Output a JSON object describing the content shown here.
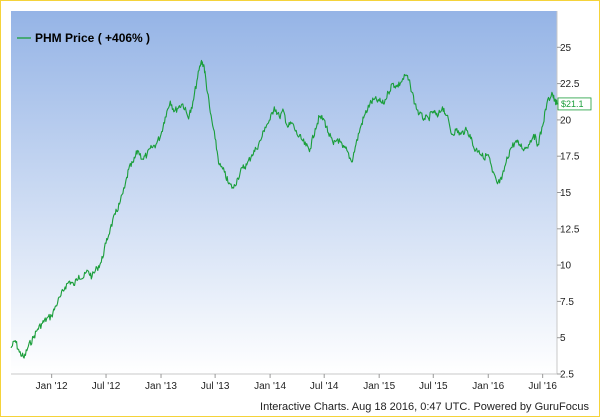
{
  "chart_data": {
    "type": "line",
    "title": "",
    "xlabel": "",
    "ylabel": "",
    "legend": {
      "label": "PHM Price ( +406% )",
      "position": "top-left"
    },
    "x_tick_labels": [
      "Jan '12",
      "Jul '12",
      "Jan '13",
      "Jul '13",
      "Jan '14",
      "Jul '14",
      "Jan '15",
      "Jul '15",
      "Jan '16",
      "Jul '16"
    ],
    "y_tick_labels": [
      "2.5",
      "5",
      "7.5",
      "10",
      "12.5",
      "15",
      "17.5",
      "20",
      "22.5",
      "25"
    ],
    "ylim": [
      2.5,
      27.5
    ],
    "x_range": [
      "2011-08-18",
      "2016-08-18"
    ],
    "grid": false,
    "last_value_label": "$21.1",
    "colors": {
      "line": "#1a9e3a",
      "plot_top": "#95b4e6",
      "plot_bottom": "#ffffff",
      "frame": "#f5d33a"
    },
    "series": [
      {
        "name": "PHM Price",
        "points": [
          [
            "2011-08-18",
            4.3
          ],
          [
            "2011-09-01",
            4.8
          ],
          [
            "2011-09-15",
            4.0
          ],
          [
            "2011-10-01",
            3.6
          ],
          [
            "2011-10-15",
            4.4
          ],
          [
            "2011-11-01",
            5.0
          ],
          [
            "2011-11-15",
            5.6
          ],
          [
            "2011-12-01",
            6.0
          ],
          [
            "2011-12-15",
            6.3
          ],
          [
            "2012-01-01",
            6.5
          ],
          [
            "2012-01-15",
            7.2
          ],
          [
            "2012-02-01",
            7.9
          ],
          [
            "2012-02-15",
            8.5
          ],
          [
            "2012-03-01",
            8.9
          ],
          [
            "2012-03-15",
            8.6
          ],
          [
            "2012-04-01",
            9.3
          ],
          [
            "2012-04-15",
            9.1
          ],
          [
            "2012-05-01",
            9.6
          ],
          [
            "2012-05-15",
            9.2
          ],
          [
            "2012-06-01",
            9.8
          ],
          [
            "2012-06-15",
            10.2
          ],
          [
            "2012-07-01",
            11.5
          ],
          [
            "2012-07-15",
            12.5
          ],
          [
            "2012-08-01",
            13.5
          ],
          [
            "2012-08-15",
            14.2
          ],
          [
            "2012-09-01",
            15.3
          ],
          [
            "2012-09-15",
            16.6
          ],
          [
            "2012-10-01",
            17.1
          ],
          [
            "2012-10-15",
            17.9
          ],
          [
            "2012-11-01",
            17.3
          ],
          [
            "2012-11-15",
            17.6
          ],
          [
            "2012-12-01",
            18.1
          ],
          [
            "2012-12-15",
            18.3
          ],
          [
            "2013-01-01",
            19.0
          ],
          [
            "2013-01-15",
            20.2
          ],
          [
            "2013-02-01",
            21.3
          ],
          [
            "2013-02-15",
            20.6
          ],
          [
            "2013-03-01",
            20.9
          ],
          [
            "2013-03-15",
            21.1
          ],
          [
            "2013-04-01",
            20.2
          ],
          [
            "2013-04-15",
            20.8
          ],
          [
            "2013-05-01",
            22.7
          ],
          [
            "2013-05-15",
            24.0
          ],
          [
            "2013-05-24",
            23.8
          ],
          [
            "2013-06-01",
            22.6
          ],
          [
            "2013-06-15",
            20.5
          ],
          [
            "2013-07-01",
            18.7
          ],
          [
            "2013-07-15",
            16.9
          ],
          [
            "2013-08-01",
            16.4
          ],
          [
            "2013-08-15",
            15.6
          ],
          [
            "2013-09-01",
            15.3
          ],
          [
            "2013-09-15",
            16.0
          ],
          [
            "2013-10-01",
            16.7
          ],
          [
            "2013-10-15",
            16.9
          ],
          [
            "2013-11-01",
            17.6
          ],
          [
            "2013-11-15",
            18.0
          ],
          [
            "2013-12-01",
            18.6
          ],
          [
            "2013-12-15",
            19.5
          ],
          [
            "2014-01-01",
            20.0
          ],
          [
            "2014-01-15",
            20.9
          ],
          [
            "2014-02-01",
            20.2
          ],
          [
            "2014-02-15",
            20.6
          ],
          [
            "2014-03-01",
            19.5
          ],
          [
            "2014-03-15",
            19.8
          ],
          [
            "2014-04-01",
            19.0
          ],
          [
            "2014-04-15",
            18.7
          ],
          [
            "2014-05-01",
            18.2
          ],
          [
            "2014-05-15",
            18.0
          ],
          [
            "2014-06-01",
            19.4
          ],
          [
            "2014-06-15",
            20.2
          ],
          [
            "2014-07-01",
            20.0
          ],
          [
            "2014-07-15",
            19.1
          ],
          [
            "2014-08-01",
            18.3
          ],
          [
            "2014-08-15",
            18.7
          ],
          [
            "2014-09-01",
            18.1
          ],
          [
            "2014-09-15",
            17.9
          ],
          [
            "2014-10-01",
            17.1
          ],
          [
            "2014-10-15",
            18.3
          ],
          [
            "2014-11-01",
            19.6
          ],
          [
            "2014-11-15",
            20.4
          ],
          [
            "2014-12-01",
            21.1
          ],
          [
            "2014-12-15",
            21.4
          ],
          [
            "2015-01-01",
            21.3
          ],
          [
            "2015-01-15",
            21.1
          ],
          [
            "2015-02-01",
            21.9
          ],
          [
            "2015-02-15",
            22.5
          ],
          [
            "2015-03-01",
            22.3
          ],
          [
            "2015-03-15",
            22.6
          ],
          [
            "2015-04-01",
            23.1
          ],
          [
            "2015-04-15",
            22.4
          ],
          [
            "2015-05-01",
            21.1
          ],
          [
            "2015-05-15",
            20.4
          ],
          [
            "2015-06-01",
            20.1
          ],
          [
            "2015-06-15",
            20.1
          ],
          [
            "2015-07-01",
            20.6
          ],
          [
            "2015-07-15",
            20.2
          ],
          [
            "2015-08-01",
            20.9
          ],
          [
            "2015-08-15",
            20.3
          ],
          [
            "2015-09-01",
            19.0
          ],
          [
            "2015-09-15",
            19.3
          ],
          [
            "2015-10-01",
            19.0
          ],
          [
            "2015-10-15",
            19.3
          ],
          [
            "2015-11-01",
            19.0
          ],
          [
            "2015-11-15",
            18.0
          ],
          [
            "2015-12-01",
            17.9
          ],
          [
            "2015-12-15",
            17.4
          ],
          [
            "2016-01-01",
            17.6
          ],
          [
            "2016-01-15",
            16.4
          ],
          [
            "2016-02-01",
            15.6
          ],
          [
            "2016-02-15",
            15.9
          ],
          [
            "2016-03-01",
            17.1
          ],
          [
            "2016-03-15",
            18.0
          ],
          [
            "2016-04-01",
            18.5
          ],
          [
            "2016-04-15",
            18.3
          ],
          [
            "2016-05-01",
            18.0
          ],
          [
            "2016-05-15",
            18.3
          ],
          [
            "2016-06-01",
            19.0
          ],
          [
            "2016-06-15",
            18.3
          ],
          [
            "2016-07-01",
            19.6
          ],
          [
            "2016-07-15",
            21.1
          ],
          [
            "2016-08-01",
            21.9
          ],
          [
            "2016-08-10",
            21.3
          ],
          [
            "2016-08-18",
            21.1
          ]
        ]
      }
    ]
  },
  "footer": {
    "text": "Interactive Charts. Aug 18 2016, 0:47 UTC. Powered by GuruFocus"
  }
}
